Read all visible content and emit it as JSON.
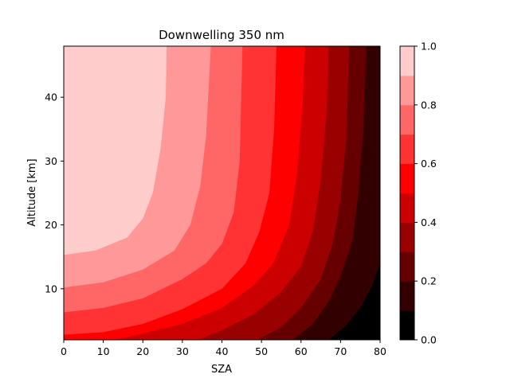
{
  "chart_data": {
    "type": "contourf",
    "title": "Downwelling 350 nm",
    "xlabel": "SZA",
    "ylabel": "Altitude [km]",
    "xlim": [
      0,
      80
    ],
    "ylim": [
      2,
      48
    ],
    "xticks": [
      0,
      10,
      20,
      30,
      40,
      50,
      60,
      70,
      80
    ],
    "yticks": [
      10,
      20,
      30,
      40
    ],
    "grid": false,
    "colorbar": {
      "placement": "right",
      "ticks": [
        0.0,
        0.2,
        0.4,
        0.6,
        0.8,
        1.0
      ],
      "tick_labels": [
        "0.0",
        "0.2",
        "0.4",
        "0.6",
        "0.8",
        "1.0"
      ]
    },
    "levels": [
      0.0,
      0.1,
      0.2,
      0.3,
      0.4,
      0.5,
      0.6,
      0.7,
      0.8,
      0.9,
      1.0
    ],
    "level_colors": [
      "#000000",
      "#330000",
      "#660000",
      "#990000",
      "#cc0000",
      "#ff0000",
      "#ff3333",
      "#ff6666",
      "#ff9999",
      "#ffcccc"
    ],
    "contour_lines": [
      {
        "level": 0.9,
        "points": [
          [
            0,
            15.3
          ],
          [
            8,
            16.0
          ],
          [
            16,
            18.0
          ],
          [
            20,
            21.0
          ],
          [
            22.5,
            25.0
          ],
          [
            24.5,
            32.0
          ],
          [
            25.8,
            40.0
          ],
          [
            26.0,
            48.0
          ]
        ]
      },
      {
        "level": 0.8,
        "points": [
          [
            0,
            10.2
          ],
          [
            10,
            11.0
          ],
          [
            20,
            13.0
          ],
          [
            28,
            16.0
          ],
          [
            32,
            20.0
          ],
          [
            34.5,
            26.0
          ],
          [
            36,
            34.0
          ],
          [
            37.2,
            48.0
          ]
        ]
      },
      {
        "level": 0.7,
        "points": [
          [
            0,
            6.3
          ],
          [
            10,
            7.0
          ],
          [
            20,
            8.5
          ],
          [
            30,
            11.5
          ],
          [
            36,
            14.0
          ],
          [
            40,
            17.0
          ],
          [
            43,
            22.0
          ],
          [
            44.5,
            30.0
          ],
          [
            45.2,
            48.0
          ]
        ]
      },
      {
        "level": 0.6,
        "points": [
          [
            0,
            2.8
          ],
          [
            10,
            3.2
          ],
          [
            20,
            4.5
          ],
          [
            30,
            6.8
          ],
          [
            40,
            10.0
          ],
          [
            46,
            14.0
          ],
          [
            49.5,
            19.0
          ],
          [
            52,
            25.0
          ],
          [
            53.2,
            35.0
          ],
          [
            53.8,
            48.0
          ]
        ]
      },
      {
        "level": 0.5,
        "points": [
          [
            13,
            2.0
          ],
          [
            20,
            3.0
          ],
          [
            30,
            4.5
          ],
          [
            40,
            7.0
          ],
          [
            48,
            10.5
          ],
          [
            53,
            14.0
          ],
          [
            57,
            20.0
          ],
          [
            59,
            28.0
          ],
          [
            60.5,
            40.0
          ],
          [
            61,
            48.0
          ]
        ]
      },
      {
        "level": 0.4,
        "points": [
          [
            34,
            2.0
          ],
          [
            40,
            3.5
          ],
          [
            48,
            6.0
          ],
          [
            55,
            9.5
          ],
          [
            60,
            13.5
          ],
          [
            63,
            19.0
          ],
          [
            65,
            27.0
          ],
          [
            66.5,
            38.0
          ],
          [
            67,
            48.0
          ]
        ]
      },
      {
        "level": 0.3,
        "points": [
          [
            49,
            2.0
          ],
          [
            55,
            4.0
          ],
          [
            60,
            7.0
          ],
          [
            65,
            11.5
          ],
          [
            68,
            17.0
          ],
          [
            70,
            24.0
          ],
          [
            71.5,
            34.0
          ],
          [
            72.2,
            48.0
          ]
        ]
      },
      {
        "level": 0.2,
        "points": [
          [
            58,
            2.0
          ],
          [
            63,
            4.5
          ],
          [
            67,
            8.0
          ],
          [
            70,
            12.0
          ],
          [
            73,
            17.5
          ],
          [
            74.5,
            25.0
          ],
          [
            75.8,
            35.0
          ],
          [
            76.5,
            48.0
          ]
        ]
      },
      {
        "level": 0.1,
        "points": [
          [
            67,
            2.0
          ],
          [
            71,
            4.0
          ],
          [
            75,
            7.0
          ],
          [
            78,
            10.5
          ],
          [
            80,
            14.0
          ]
        ]
      }
    ]
  }
}
